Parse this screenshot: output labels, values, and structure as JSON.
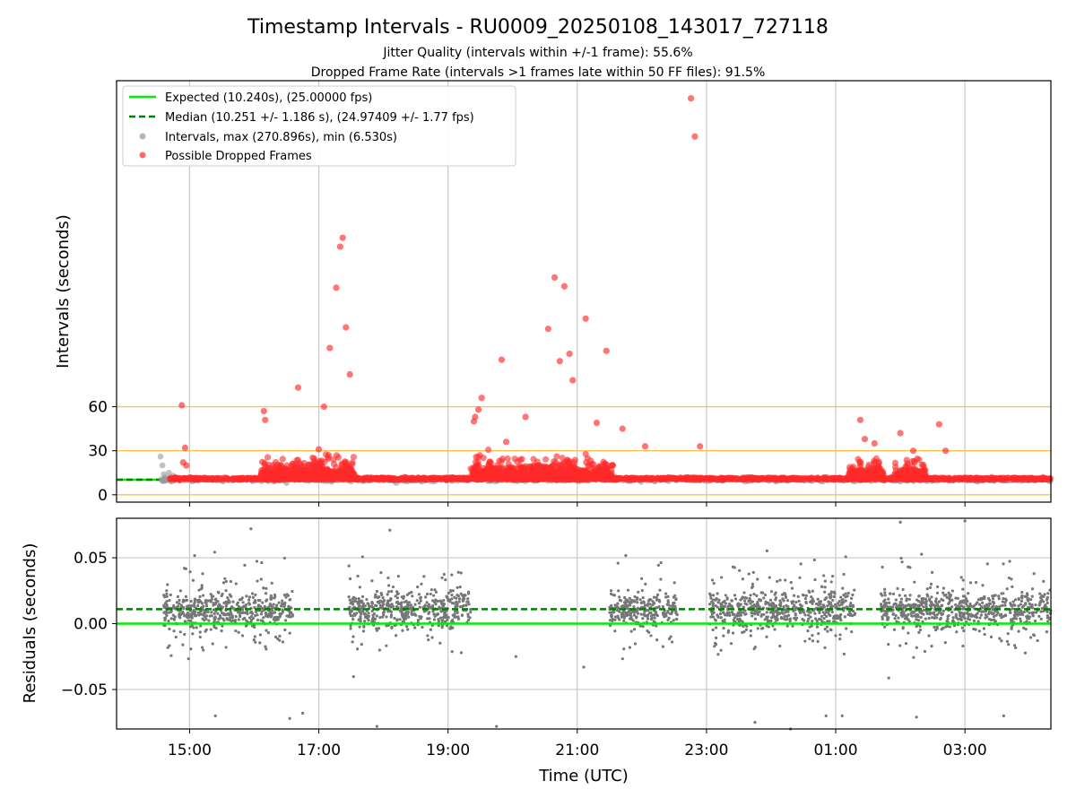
{
  "chart_data": [
    {
      "panel": "intervals",
      "type": "scatter",
      "title": "Timestamp Intervals - RU0009_20250108_143017_727118",
      "subtitle_1": "Jitter Quality (intervals within +/-1 frame): 55.6%",
      "subtitle_2": "Dropped Frame Rate (intervals >1 frames late within 50 FF files): 91.5%",
      "ylabel": "Intervals (seconds)",
      "ylim": [
        -5,
        282
      ],
      "yticks": [
        "0",
        "30",
        "60"
      ],
      "ytick_values": [
        0,
        30,
        60
      ],
      "xlim_hours": [
        13.87,
        28.33
      ],
      "reference_lines": [
        {
          "label": "Expected (10.240s), (25.00000 fps)",
          "value": 10.24,
          "color": "#00ee00",
          "style": "solid"
        },
        {
          "label": "Median (10.251 +/- 1.186 s), (24.97409 +/- 1.77 fps)",
          "value": 10.251,
          "color": "#008000",
          "style": "dashed"
        }
      ],
      "threshold_lines": [
        0,
        30,
        60
      ],
      "threshold_color": "#ffc34d",
      "grid": "x",
      "legend_position": "upper-left",
      "legend": [
        {
          "label": "Expected (10.240s), (25.00000 fps)",
          "kind": "line",
          "color": "#00ee00",
          "style": "solid"
        },
        {
          "label": "Median (10.251 +/- 1.186 s), (24.97409 +/- 1.77 fps)",
          "kind": "line",
          "color": "#008000",
          "style": "dashed"
        },
        {
          "label": "Intervals, max (270.896s), min (6.530s)",
          "kind": "marker",
          "color": "#999999"
        },
        {
          "label": "Possible Dropped Frames",
          "kind": "marker",
          "color": "#ff2a2a"
        }
      ],
      "series": [
        {
          "name": "Intervals, max (270.896s), min (6.530s)",
          "color": "#999999",
          "x": [
            14.55,
            14.58,
            14.6,
            14.62,
            14.65,
            14.68,
            14.7,
            14.72,
            14.75,
            14.8,
            15.5,
            16.3,
            16.5,
            17.2,
            17.5,
            18.2,
            18.6,
            19.0,
            19.7,
            20.4,
            21.0,
            21.6,
            22.2,
            22.9,
            23.6,
            24.2,
            24.8,
            25.4,
            26.0,
            26.6,
            27.2,
            27.8
          ],
          "y": [
            26,
            20,
            14,
            12,
            10,
            15,
            12,
            9,
            13,
            11,
            10,
            9,
            8,
            9,
            9,
            8,
            9,
            10,
            11,
            10,
            11,
            10,
            9,
            10,
            9,
            10,
            9,
            10,
            9,
            10,
            9,
            10
          ]
        },
        {
          "name": "Possible Dropped Frames",
          "color": "#ff2a2a",
          "x": [
            14.88,
            14.93,
            14.9,
            14.95,
            16.15,
            16.17,
            16.52,
            16.68,
            17.0,
            17.08,
            17.17,
            17.27,
            17.33,
            17.37,
            17.42,
            17.48,
            19.4,
            19.42,
            19.47,
            19.52,
            19.83,
            20.55,
            20.65,
            20.73,
            20.8,
            20.88,
            20.93,
            21.13,
            21.45,
            22.76,
            22.82,
            22.9,
            20.2,
            19.9,
            21.3,
            21.7,
            22.05,
            25.38,
            25.45,
            25.6,
            26.0,
            26.2,
            26.6,
            26.7
          ],
          "y": [
            61,
            32,
            22,
            20,
            57,
            51,
            12,
            73,
            31,
            60,
            100,
            141,
            169,
            175,
            114,
            82,
            50,
            53,
            58,
            66,
            92,
            113,
            148,
            91,
            142,
            96,
            78,
            120,
            98,
            270,
            244,
            33,
            53,
            36,
            49,
            45,
            33,
            51,
            38,
            35,
            42,
            30,
            48,
            30
          ]
        }
      ]
    },
    {
      "panel": "residuals",
      "type": "scatter",
      "xlabel": "Time (UTC)",
      "ylabel": "Residuals (seconds)",
      "ylim": [
        -0.08,
        0.08
      ],
      "yticks": [
        "−0.05",
        "0.00",
        "0.05"
      ],
      "ytick_values": [
        -0.05,
        0.0,
        0.05
      ],
      "xlim_hours": [
        13.87,
        28.33
      ],
      "xticks": [
        "15:00",
        "17:00",
        "19:00",
        "21:00",
        "23:00",
        "01:00",
        "03:00"
      ],
      "xtick_hours": [
        15,
        17,
        19,
        21,
        23,
        25,
        27
      ],
      "reference_lines": [
        {
          "value": 0.0,
          "color": "#00ee00",
          "style": "solid"
        },
        {
          "value": 0.011,
          "color": "#008000",
          "style": "dashed"
        }
      ],
      "grid": "both",
      "point_color": "#777777",
      "clusters": [
        {
          "x": [
            14.6,
            16.6
          ],
          "y_center": 0.01,
          "spread": 0.03
        },
        {
          "x": [
            17.45,
            19.35
          ],
          "y_center": 0.012,
          "spread": 0.03
        },
        {
          "x": [
            21.5,
            22.55
          ],
          "y_center": 0.01,
          "spread": 0.03
        },
        {
          "x": [
            23.05,
            25.3
          ],
          "y_center": 0.011,
          "spread": 0.03
        },
        {
          "x": [
            25.7,
            28.33
          ],
          "y_center": 0.011,
          "spread": 0.03
        }
      ],
      "outliers": [
        {
          "x": 15.4,
          "y": -0.07
        },
        {
          "x": 16.55,
          "y": -0.072
        },
        {
          "x": 16.75,
          "y": -0.068
        },
        {
          "x": 17.9,
          "y": -0.078
        },
        {
          "x": 19.75,
          "y": -0.078
        },
        {
          "x": 20.05,
          "y": -0.025
        },
        {
          "x": 21.1,
          "y": -0.033
        },
        {
          "x": 23.75,
          "y": -0.075
        },
        {
          "x": 24.3,
          "y": -0.08
        },
        {
          "x": 24.85,
          "y": -0.07
        },
        {
          "x": 25.1,
          "y": -0.07
        },
        {
          "x": 26.25,
          "y": -0.071
        },
        {
          "x": 27.6,
          "y": -0.07
        },
        {
          "x": 15.95,
          "y": 0.072
        },
        {
          "x": 18.1,
          "y": 0.071
        },
        {
          "x": 27.0,
          "y": 0.078
        },
        {
          "x": 26.0,
          "y": 0.077
        }
      ]
    }
  ]
}
